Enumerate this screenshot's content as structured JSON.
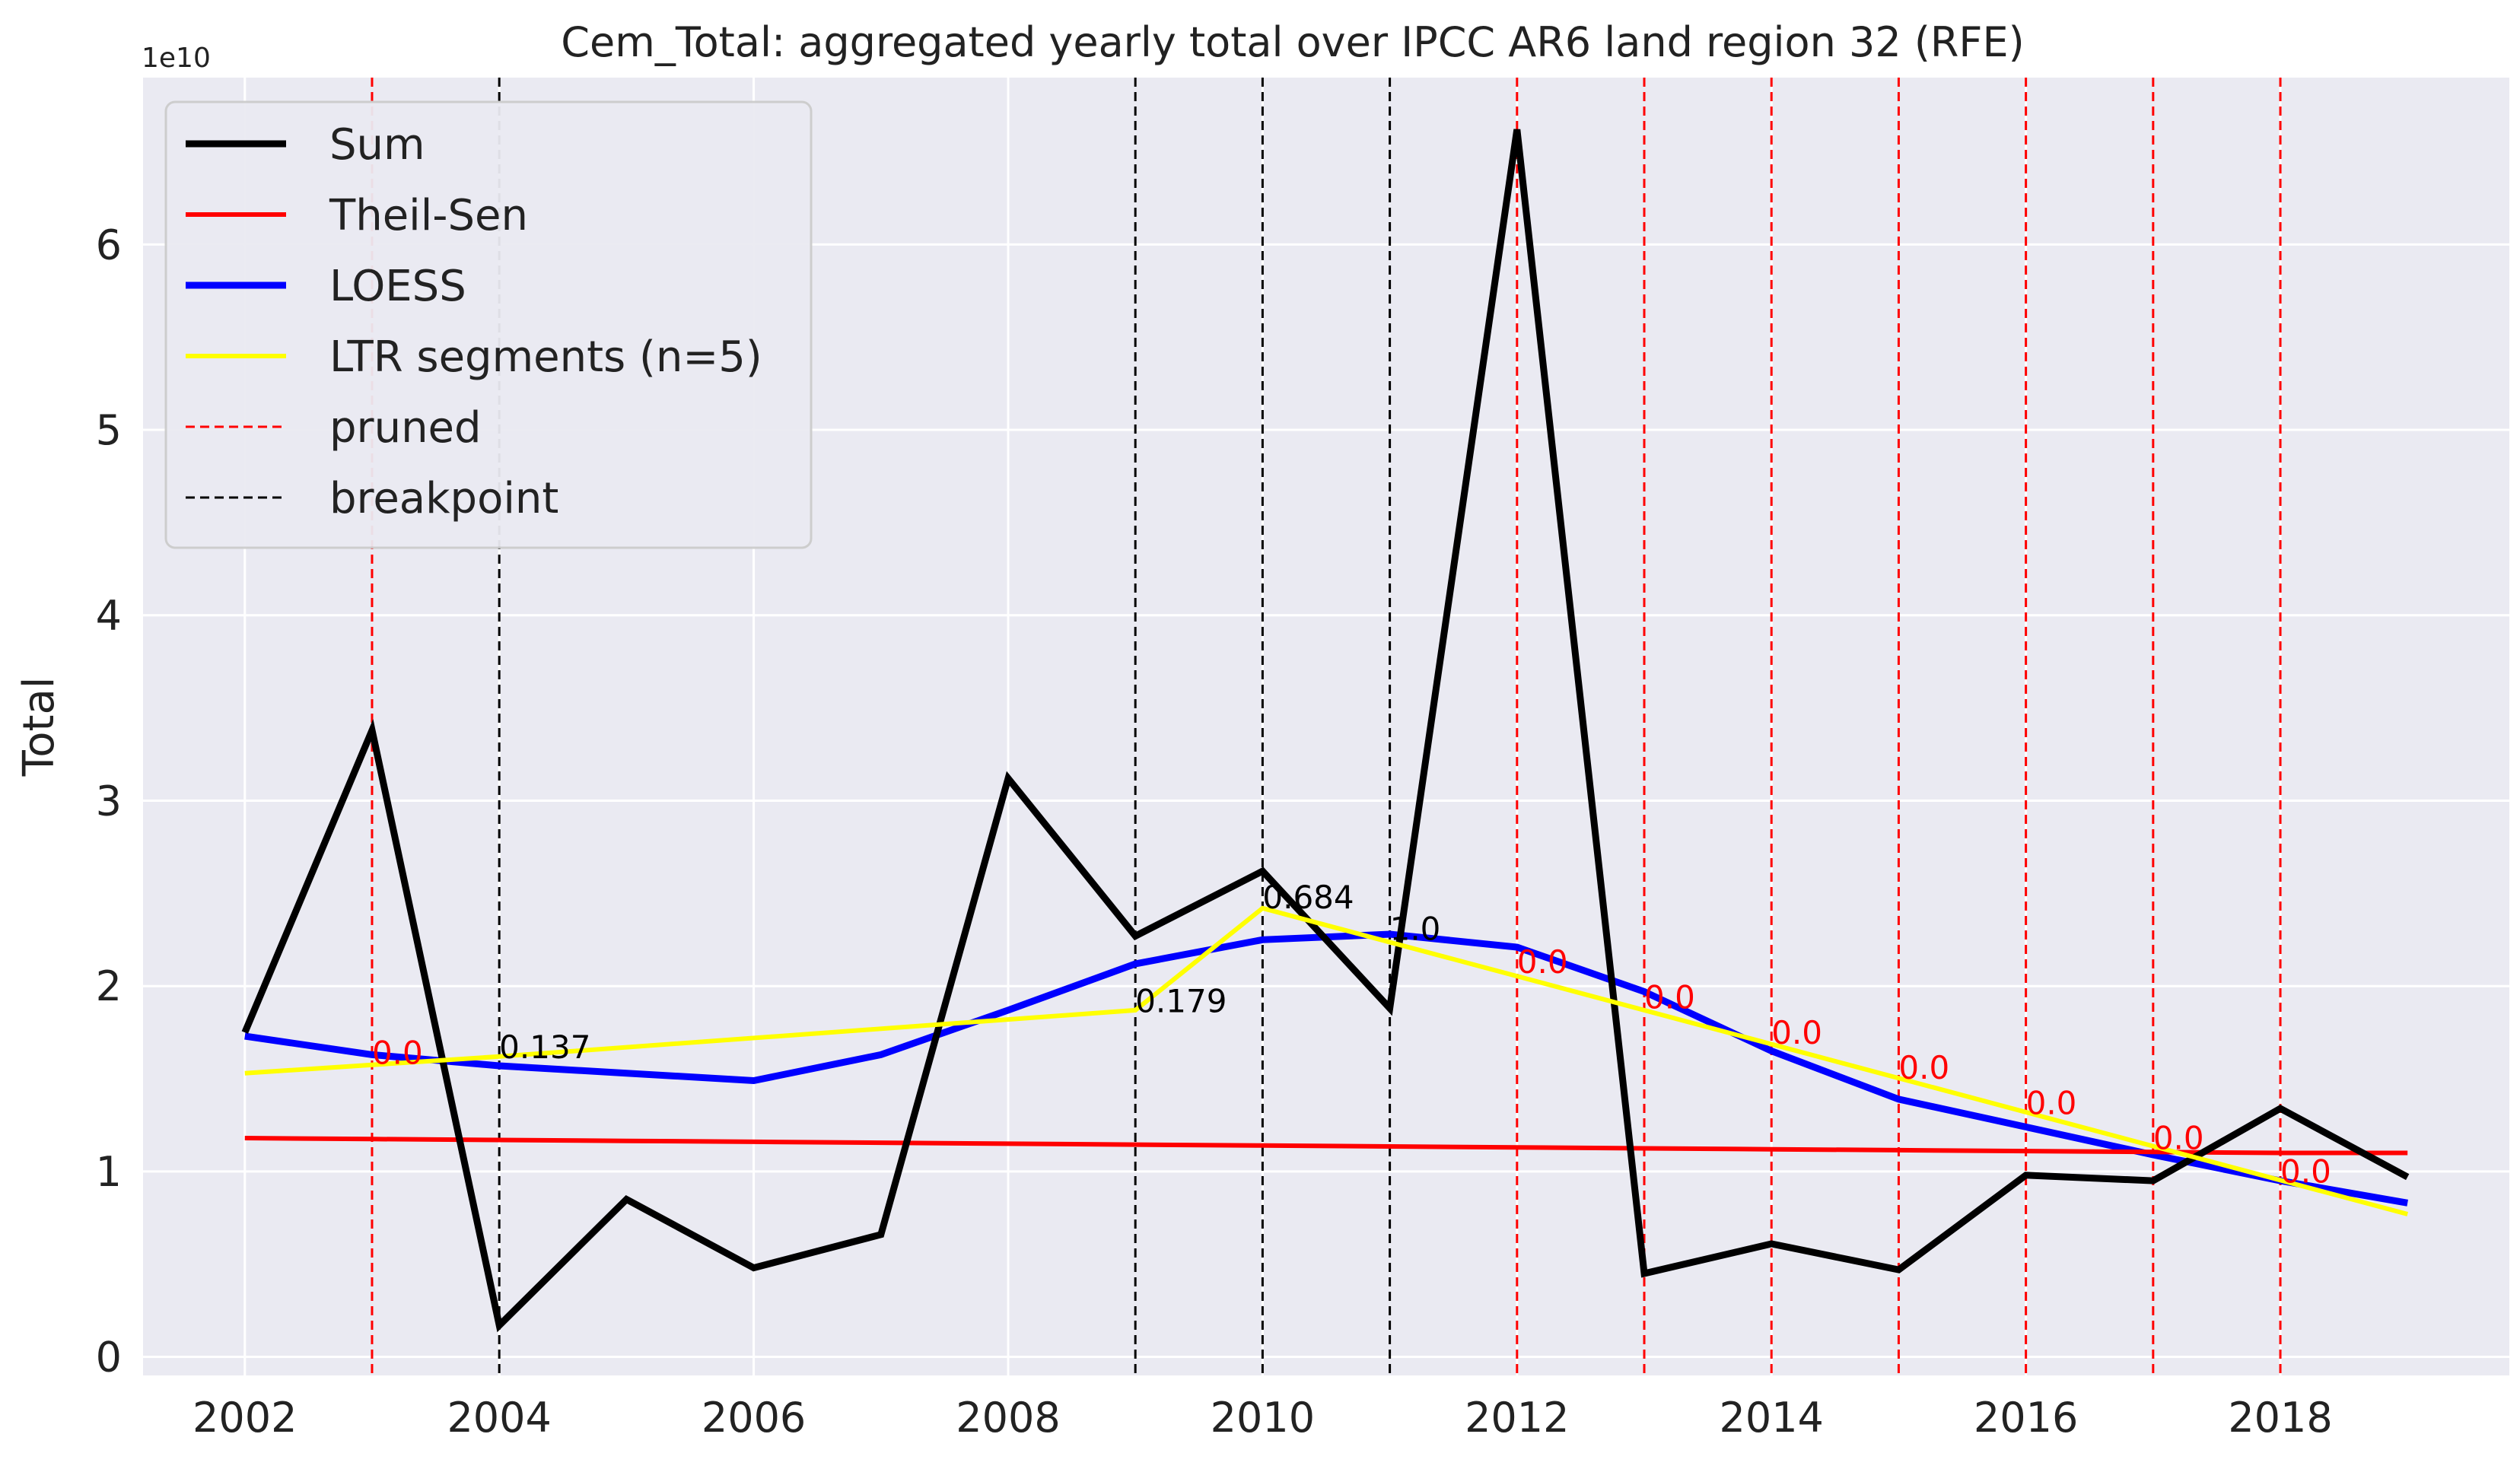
{
  "chart_data": {
    "type": "line",
    "title": "Cem_Total: aggregated yearly total over IPCC AR6 land region 32 (RFE)",
    "xlabel": "",
    "ylabel": "Total",
    "y_multiplier_label": "1e10",
    "x": [
      2002,
      2003,
      2004,
      2005,
      2006,
      2007,
      2008,
      2009,
      2010,
      2011,
      2012,
      2013,
      2014,
      2015,
      2016,
      2017,
      2018,
      2019
    ],
    "xlim": [
      2001.2,
      2019.8
    ],
    "ylim": [
      -0.1,
      6.9
    ],
    "x_ticks": [
      "2002",
      "2004",
      "2006",
      "2008",
      "2010",
      "2012",
      "2014",
      "2016",
      "2018"
    ],
    "y_ticks": [
      "0",
      "1",
      "2",
      "3",
      "4",
      "5",
      "6"
    ],
    "grid": true,
    "background": "#eaeaf2",
    "legend_position": "top-left",
    "series": [
      {
        "name": "Sum",
        "color": "#000000",
        "style": "solid",
        "width": "thick",
        "values": [
          1.75,
          3.38,
          0.17,
          0.85,
          0.48,
          0.66,
          3.12,
          2.27,
          2.62,
          1.88,
          6.62,
          0.45,
          0.61,
          0.47,
          0.98,
          0.95,
          1.34,
          0.97
        ]
      },
      {
        "name": "Theil-Sen",
        "color": "#ff0000",
        "style": "solid",
        "width": "medium",
        "values": [
          1.18,
          1.175,
          1.17,
          1.165,
          1.16,
          1.155,
          1.15,
          1.145,
          1.14,
          1.135,
          1.13,
          1.125,
          1.12,
          1.115,
          1.11,
          1.105,
          1.1,
          1.1
        ]
      },
      {
        "name": "LOESS",
        "color": "#0000ff",
        "style": "solid",
        "width": "thick",
        "values": [
          1.73,
          1.63,
          1.57,
          1.53,
          1.49,
          1.63,
          1.87,
          2.12,
          2.25,
          2.28,
          2.21,
          1.97,
          1.65,
          1.39,
          1.24,
          1.09,
          0.95,
          0.83
        ]
      },
      {
        "name": "LTR segments (n=5)",
        "color": "#ffff00",
        "style": "solid",
        "width": "medium",
        "x": [
          2002,
          2004,
          2009,
          2010,
          2019
        ],
        "values": [
          1.53,
          1.62,
          1.87,
          2.42,
          0.77
        ]
      }
    ],
    "vlines": [
      {
        "x": 2003,
        "kind": "pruned",
        "label": "0.0"
      },
      {
        "x": 2004,
        "kind": "breakpoint",
        "label": "0.137"
      },
      {
        "x": 2009,
        "kind": "breakpoint",
        "label": "0.179"
      },
      {
        "x": 2010,
        "kind": "breakpoint",
        "label": "0.684"
      },
      {
        "x": 2011,
        "kind": "breakpoint",
        "label": "1.0"
      },
      {
        "x": 2012,
        "kind": "pruned",
        "label": "0.0"
      },
      {
        "x": 2013,
        "kind": "pruned",
        "label": "0.0"
      },
      {
        "x": 2014,
        "kind": "pruned",
        "label": "0.0"
      },
      {
        "x": 2015,
        "kind": "pruned",
        "label": "0.0"
      },
      {
        "x": 2016,
        "kind": "pruned",
        "label": "0.0"
      },
      {
        "x": 2017,
        "kind": "pruned",
        "label": "0.0"
      },
      {
        "x": 2018,
        "kind": "pruned",
        "label": "0.0"
      }
    ],
    "vline_label_y": [
      1.58,
      1.61,
      1.86,
      2.42,
      2.25,
      2.07,
      1.88,
      1.69,
      1.5,
      1.31,
      1.12,
      0.94
    ],
    "legend": [
      {
        "label": "Sum",
        "color": "#000000",
        "style": "solid",
        "width": "thick"
      },
      {
        "label": "Theil-Sen",
        "color": "#ff0000",
        "style": "solid",
        "width": "medium"
      },
      {
        "label": "LOESS",
        "color": "#0000ff",
        "style": "solid",
        "width": "thick"
      },
      {
        "label": "LTR segments (n=5)",
        "color": "#ffff00",
        "style": "solid",
        "width": "medium"
      },
      {
        "label": "pruned",
        "color": "#ff0000",
        "style": "dashed",
        "width": "thin"
      },
      {
        "label": "breakpoint",
        "color": "#000000",
        "style": "dashed",
        "width": "thin"
      }
    ]
  }
}
